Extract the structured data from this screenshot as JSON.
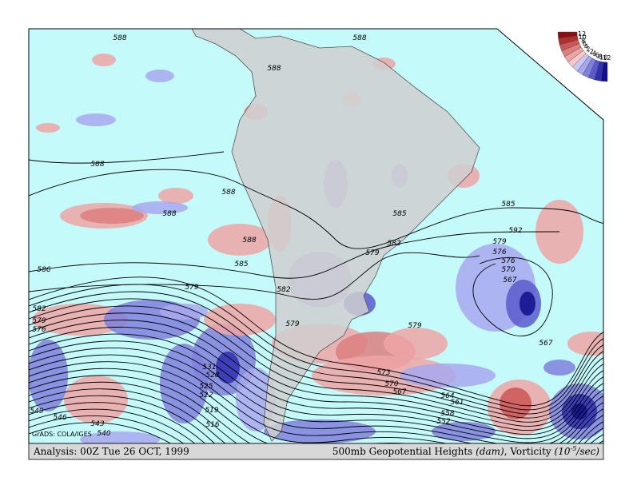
{
  "map": {
    "contour_labels": [
      "588",
      "588",
      "588",
      "588",
      "588",
      "588",
      "588",
      "586",
      "585",
      "585",
      "585",
      "582",
      "582",
      "579",
      "579",
      "579",
      "579",
      "576",
      "573",
      "570",
      "567",
      "567",
      "564",
      "561",
      "558",
      "552",
      "549",
      "546",
      "543",
      "540",
      "531",
      "528",
      "525",
      "522",
      "519",
      "516",
      "592",
      "579",
      "576",
      "570",
      "567",
      "582",
      "579",
      "576"
    ],
    "legend": {
      "labels": [
        12,
        10,
        8,
        6,
        4,
        2,
        -2,
        -4,
        -6,
        -8,
        -10,
        -12
      ],
      "colors": [
        "#8b1010",
        "#b03030",
        "#cc5555",
        "#dd7f7f",
        "#eea5a5",
        "#f8c8c8",
        "#c8c8f8",
        "#a8a8ee",
        "#8080dd",
        "#5a5acc",
        "#3030b0",
        "#10108b"
      ]
    },
    "credit": "GrADS: COLA/IGES",
    "footer_left": "Analysis: 00Z Tue 26 OCT, 1999",
    "footer_right": {
      "main": "500mb Geopotential Heights ",
      "unit": "(dam)",
      "middle": ", Vorticity ",
      "unit2_base": "(10",
      "unit2_exp": "-5",
      "unit2_end": "/sec)"
    }
  }
}
